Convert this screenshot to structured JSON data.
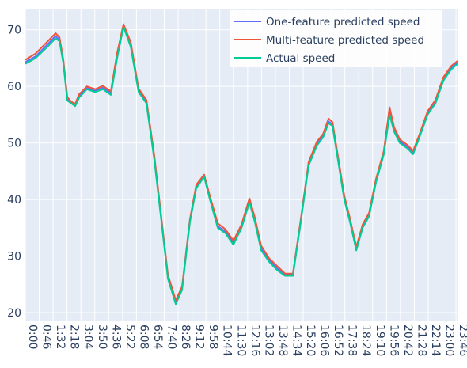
{
  "chart_data": {
    "type": "line",
    "x": [
      0,
      34,
      73,
      100,
      113,
      126,
      139,
      152,
      165,
      178,
      204,
      231,
      257,
      283,
      304,
      325,
      349,
      375,
      401,
      427,
      453,
      472,
      498,
      519,
      545,
      566,
      592,
      611,
      637,
      663,
      689,
      716,
      742,
      760,
      781,
      807,
      834,
      860,
      886,
      912,
      938,
      965,
      986,
      1004,
      1017,
      1038,
      1056,
      1075,
      1096,
      1117,
      1138,
      1161,
      1187,
      1206,
      1221,
      1240,
      1266,
      1284,
      1305,
      1332,
      1358,
      1384,
      1410,
      1431
    ],
    "series": [
      {
        "name": "One-feature predicted speed",
        "color": "#636efa",
        "values": [
          64.3,
          65.3,
          67.4,
          68.9,
          68.3,
          64.3,
          57.8,
          57.1,
          56.7,
          58.3,
          59.8,
          59.2,
          59.8,
          58.8,
          65.4,
          70.8,
          67.3,
          59.3,
          57.3,
          47.4,
          35.3,
          26.4,
          21.9,
          24.3,
          36.3,
          42.3,
          44.2,
          40.3,
          35.3,
          34.3,
          32.3,
          35.2,
          39.8,
          36.3,
          31.3,
          29.3,
          27.8,
          26.7,
          26.7,
          36.2,
          46.3,
          49.8,
          51.3,
          53.8,
          53.3,
          46.3,
          40.3,
          36.3,
          31.3,
          35.2,
          37.3,
          43.3,
          48.3,
          55.4,
          52.4,
          50.3,
          49.3,
          48.3,
          51.3,
          55.3,
          57.3,
          61.3,
          63.3,
          64.2
        ]
      },
      {
        "name": "Multi-feature predicted speed",
        "color": "#ef553b",
        "values": [
          64.7,
          65.8,
          67.9,
          69.4,
          68.7,
          64.6,
          58.1,
          57.3,
          56.9,
          58.6,
          60.0,
          59.5,
          60.1,
          59.1,
          65.9,
          71.0,
          67.8,
          59.6,
          57.6,
          47.8,
          35.6,
          26.7,
          22.2,
          24.6,
          36.5,
          42.6,
          44.4,
          40.6,
          35.8,
          34.7,
          32.7,
          35.6,
          40.2,
          36.8,
          31.8,
          29.6,
          28.2,
          26.9,
          26.9,
          36.5,
          46.6,
          50.2,
          51.6,
          54.3,
          53.7,
          46.7,
          40.7,
          36.6,
          31.6,
          35.6,
          37.6,
          43.6,
          48.6,
          56.3,
          52.8,
          50.6,
          49.6,
          48.6,
          51.5,
          55.6,
          57.6,
          61.6,
          63.6,
          64.5
        ]
      },
      {
        "name": "Actual speed",
        "color": "#00cc96",
        "values": [
          64,
          65,
          67,
          68.5,
          68,
          64,
          57.5,
          57,
          56.5,
          58,
          59.5,
          59,
          59.5,
          58.5,
          65,
          70.5,
          67,
          59,
          57,
          47,
          35,
          26,
          21.5,
          24,
          36,
          42,
          44,
          40,
          35,
          34,
          32,
          35,
          39.5,
          36,
          31,
          29,
          27.5,
          26.5,
          26.5,
          36,
          46,
          49.5,
          51,
          53.5,
          53,
          46,
          40,
          36,
          31,
          35,
          37,
          43,
          48,
          55,
          52,
          50,
          49,
          48,
          51,
          55,
          57,
          61,
          63,
          64
        ]
      }
    ],
    "xlim": [
      0,
      1431
    ],
    "ylim": [
      18.6,
      73.6
    ],
    "yticks": [
      20,
      30,
      40,
      50,
      60,
      70
    ],
    "xticks": [
      {
        "value": 0,
        "label": "0:00"
      },
      {
        "value": 46,
        "label": "0:46"
      },
      {
        "value": 92,
        "label": "1:32"
      },
      {
        "value": 138,
        "label": "2:18"
      },
      {
        "value": 184,
        "label": "3:04"
      },
      {
        "value": 230,
        "label": "3:50"
      },
      {
        "value": 276,
        "label": "4:36"
      },
      {
        "value": 322,
        "label": "5:22"
      },
      {
        "value": 368,
        "label": "6:08"
      },
      {
        "value": 414,
        "label": "6:54"
      },
      {
        "value": 460,
        "label": "7:40"
      },
      {
        "value": 506,
        "label": "8:26"
      },
      {
        "value": 552,
        "label": "9:12"
      },
      {
        "value": 598,
        "label": "9:58"
      },
      {
        "value": 644,
        "label": "10:44"
      },
      {
        "value": 690,
        "label": "11:30"
      },
      {
        "value": 736,
        "label": "12:16"
      },
      {
        "value": 782,
        "label": "13:02"
      },
      {
        "value": 828,
        "label": "13:48"
      },
      {
        "value": 874,
        "label": "14:34"
      },
      {
        "value": 920,
        "label": "15:20"
      },
      {
        "value": 966,
        "label": "16:06"
      },
      {
        "value": 1012,
        "label": "16:52"
      },
      {
        "value": 1058,
        "label": "17:38"
      },
      {
        "value": 1104,
        "label": "18:24"
      },
      {
        "value": 1150,
        "label": "19:10"
      },
      {
        "value": 1196,
        "label": "19:56"
      },
      {
        "value": 1242,
        "label": "20:42"
      },
      {
        "value": 1288,
        "label": "21:28"
      },
      {
        "value": 1334,
        "label": "22:14"
      },
      {
        "value": 1380,
        "label": "23:00"
      },
      {
        "value": 1426,
        "label": "23:46"
      }
    ],
    "grid": true
  }
}
